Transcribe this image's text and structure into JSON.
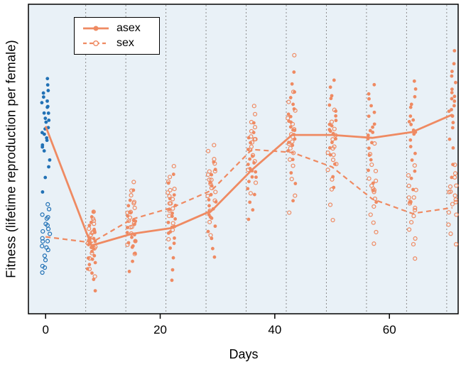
{
  "figure": {
    "x_label": "Days",
    "y_label": "Fitness (lifetime reproduction per female)"
  },
  "chart_data": {
    "type": "scatter",
    "title": "",
    "xlabel": "Days",
    "ylabel": "Fitness (lifetime reproduction per female)",
    "xlim": [
      -3,
      72
    ],
    "ylim": [
      0,
      100
    ],
    "y_axis_note": "no numeric y tick labels shown; point values are relative units 0-100 estimated from pixel positions",
    "xticks": [
      0,
      20,
      40,
      60
    ],
    "gridlines_x": [
      7,
      14,
      21,
      28,
      35,
      42,
      49,
      56,
      63,
      70
    ],
    "grid": "vertical-dotted",
    "legend_position": "top-left",
    "colors": {
      "series": "#ef8a62",
      "day0": "#2171b5",
      "panel_bg": "#e9f1f7",
      "grid": "#8c8c8c",
      "axis": "#000000"
    },
    "series": [
      {
        "name": "asex",
        "line": "solid",
        "marker": "filled",
        "groups": [
          {
            "day": 0,
            "mean": 62,
            "points": [
              78,
              76,
              74,
              73,
              72,
              71,
              70,
              69,
              68,
              67,
              66,
              65,
              64,
              63,
              62,
              61,
              60,
              59,
              58,
              57,
              56,
              55,
              53,
              51,
              48,
              44,
              40
            ]
          },
          {
            "day": 8,
            "mean": 21,
            "points": [
              33,
              31,
              29,
              28,
              27,
              26,
              25,
              24,
              23,
              22,
              22,
              21,
              21,
              20,
              20,
              19,
              18,
              17,
              16,
              15,
              14,
              13,
              11,
              9,
              6
            ]
          },
          {
            "day": 15,
            "mean": 25,
            "points": [
              40,
              37,
              35,
              33,
              32,
              31,
              30,
              29,
              28,
              27,
              26,
              25,
              24,
              23,
              22,
              21,
              20,
              18,
              15,
              12
            ]
          },
          {
            "day": 22,
            "mean": 27,
            "points": [
              45,
              42,
              39,
              37,
              35,
              33,
              32,
              31,
              30,
              29,
              28,
              27,
              26,
              25,
              24,
              22,
              20,
              17,
              13,
              9
            ]
          },
          {
            "day": 29,
            "mean": 33,
            "points": [
              50,
              47,
              45,
              43,
              41,
              39,
              38,
              37,
              36,
              35,
              34,
              33,
              32,
              31,
              30,
              28,
              26,
              23,
              20,
              17
            ]
          },
          {
            "day": 36,
            "mean": 47,
            "points": [
              63,
              60,
              58,
              56,
              54,
              52,
              51,
              50,
              49,
              48,
              47,
              46,
              45,
              44,
              43,
              41,
              39,
              36,
              33,
              30
            ]
          },
          {
            "day": 43,
            "mean": 59,
            "points": [
              80,
              77,
              74,
              72,
              70,
              68,
              66,
              65,
              64,
              63,
              62,
              61,
              60,
              59,
              58,
              57,
              55,
              53,
              50,
              46,
              42,
              37
            ]
          },
          {
            "day": 50,
            "mean": 59,
            "points": [
              78,
              75,
              73,
              71,
              69,
              67,
              65,
              64,
              63,
              62,
              61,
              60,
              59,
              58,
              56,
              54,
              52,
              49,
              45,
              41
            ]
          },
          {
            "day": 57,
            "mean": 58,
            "points": [
              76,
              73,
              71,
              69,
              67,
              65,
              63,
              62,
              61,
              60,
              59,
              58,
              56,
              54,
              52,
              50,
              47,
              43,
              40,
              36
            ]
          },
          {
            "day": 64,
            "mean": 60,
            "points": [
              78,
              75,
              72,
              70,
              68,
              66,
              64,
              63,
              62,
              61,
              60,
              59,
              57,
              55,
              53,
              50,
              47,
              44,
              40,
              36
            ]
          },
          {
            "day": 71,
            "mean": 66,
            "points": [
              88,
              84,
              81,
              79,
              77,
              75,
              73,
              72,
              71,
              70,
              69,
              68,
              67,
              66,
              65,
              63,
              61,
              58,
              54,
              49,
              44
            ]
          }
        ]
      },
      {
        "name": "sex",
        "line": "dashed",
        "marker": "open",
        "groups": [
          {
            "day": 0,
            "mean": 24,
            "points": [
              35,
              33,
              32,
              31,
              30,
              29,
              28,
              27,
              26,
              25,
              24,
              23,
              22,
              21,
              20,
              19,
              18,
              16,
              14,
              13,
              12
            ]
          },
          {
            "day": 8,
            "mean": 22,
            "points": [
              32,
              30,
              29,
              28,
              27,
              26,
              25,
              24,
              23,
              22,
              21,
              20,
              18,
              16,
              13,
              10
            ]
          },
          {
            "day": 15,
            "mean": 30,
            "points": [
              43,
              40,
              38,
              36,
              35,
              34,
              33,
              32,
              31,
              30,
              29,
              28,
              27,
              25,
              23,
              21,
              18
            ]
          },
          {
            "day": 22,
            "mean": 34,
            "points": [
              48,
              45,
              43,
              41,
              40,
              39,
              38,
              37,
              36,
              35,
              34,
              33,
              31,
              29,
              26,
              23
            ]
          },
          {
            "day": 29,
            "mean": 40,
            "points": [
              56,
              53,
              51,
              49,
              47,
              46,
              45,
              44,
              43,
              42,
              41,
              40,
              38,
              36,
              33,
              29,
              25
            ]
          },
          {
            "day": 36,
            "mean": 54,
            "points": [
              69,
              66,
              64,
              62,
              60,
              59,
              58,
              57,
              56,
              55,
              54,
              52,
              50,
              47,
              43,
              39
            ]
          },
          {
            "day": 43,
            "mean": 53,
            "points": [
              86,
              74,
              70,
              67,
              65,
              63,
              61,
              59,
              58,
              57,
              56,
              55,
              53,
              51,
              48,
              44,
              38,
              32
            ]
          },
          {
            "day": 50,
            "mean": 48,
            "points": [
              68,
              64,
              61,
              59,
              57,
              55,
              54,
              53,
              52,
              51,
              49,
              47,
              44,
              40,
              35,
              30
            ]
          },
          {
            "day": 57,
            "mean": 37,
            "points": [
              56,
              52,
              49,
              46,
              44,
              43,
              42,
              41,
              40,
              39,
              37,
              35,
              32,
              29,
              26,
              22
            ]
          },
          {
            "day": 64,
            "mean": 32,
            "points": [
              48,
              45,
              42,
              40,
              38,
              37,
              36,
              35,
              34,
              33,
              31,
              29,
              27,
              24,
              21,
              17
            ]
          },
          {
            "day": 71,
            "mean": 34,
            "points": [
              49,
              46,
              44,
              42,
              41,
              40,
              39,
              38,
              37,
              36,
              35,
              33,
              31,
              28,
              25,
              22
            ]
          }
        ]
      }
    ]
  }
}
